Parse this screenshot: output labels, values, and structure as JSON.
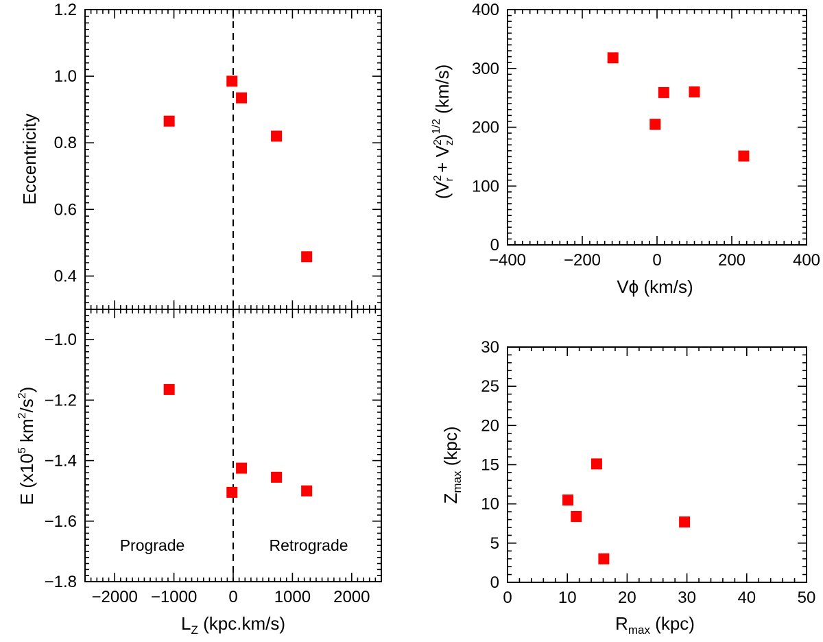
{
  "figure_title": "",
  "chart_data": [
    {
      "id": "ecc",
      "type": "scatter",
      "title": "",
      "xlabel": "",
      "ylabel": "Eccentricity",
      "xlim": [
        -2500,
        2500
      ],
      "ylim": [
        0.3,
        1.2
      ],
      "xticks": [
        -2000,
        -1000,
        0,
        1000,
        2000
      ],
      "yticks": [
        0.4,
        0.6,
        0.8,
        1.0,
        1.2
      ],
      "ytick_labels": [
        "0.4",
        "0.6",
        "0.8",
        "1.0",
        "1.2"
      ],
      "vline_x": 0,
      "marker": "square",
      "color": "#ff0000",
      "points": [
        {
          "x": -1080,
          "y": 0.865
        },
        {
          "x": -20,
          "y": 0.985
        },
        {
          "x": 140,
          "y": 0.935
        },
        {
          "x": 730,
          "y": 0.82
        },
        {
          "x": 1240,
          "y": 0.458
        }
      ]
    },
    {
      "id": "energy",
      "type": "scatter",
      "title": "",
      "xlabel": "L_Z (kpc.km/s)",
      "xlabel_main": "L",
      "xlabel_sub": "Z",
      "xlabel_rest": " (kpc.km/s)",
      "ylabel": "E (x10^5 km^2/s^2)",
      "ylabel_parts": {
        "a": "E (x10",
        "b": "5",
        "c": " km",
        "d": "2",
        "e": "/s",
        "f": "2",
        "g": ")"
      },
      "xlim": [
        -2500,
        2500
      ],
      "ylim": [
        -1.8,
        -0.9
      ],
      "xticks": [
        -2000,
        -1000,
        0,
        1000,
        2000
      ],
      "xtick_labels": [
        "−2000",
        "−1000",
        "0",
        "1000",
        "2000"
      ],
      "yticks": [
        -1.8,
        -1.6,
        -1.4,
        -1.2,
        -1.0
      ],
      "ytick_labels": [
        "−1.8",
        "−1.6",
        "−1.4",
        "−1.2",
        "−1.0"
      ],
      "vline_x": 0,
      "marker": "square",
      "color": "#ff0000",
      "annotations": [
        "Prograde",
        "Retrograde"
      ],
      "points": [
        {
          "x": -1080,
          "y": -1.165
        },
        {
          "x": -20,
          "y": -1.505
        },
        {
          "x": 140,
          "y": -1.425
        },
        {
          "x": 730,
          "y": -1.455
        },
        {
          "x": 1240,
          "y": -1.5
        }
      ]
    },
    {
      "id": "velocity",
      "type": "scatter",
      "title": "",
      "xlabel": "Vϕ (km/s)",
      "ylabel": "(V_r^2 + V_z^2)^1/2 (km/s)",
      "ylabel_parts": {
        "a": "(V",
        "b": "2",
        "c": "r",
        "d": " + V",
        "e": "2",
        "f": "z",
        "g": ")",
        "h": "1/2",
        "i": " (km/s)"
      },
      "xlim": [
        -400,
        400
      ],
      "ylim": [
        0,
        400
      ],
      "xticks": [
        -400,
        -200,
        0,
        200,
        400
      ],
      "xtick_labels": [
        "−400",
        "−200",
        "0",
        "200",
        "400"
      ],
      "yticks": [
        0,
        100,
        200,
        300,
        400
      ],
      "ytick_labels": [
        "0",
        "100",
        "200",
        "300",
        "400"
      ],
      "marker": "square",
      "color": "#ff0000",
      "points": [
        {
          "x": -118,
          "y": 318
        },
        {
          "x": -5,
          "y": 205
        },
        {
          "x": 18,
          "y": 259
        },
        {
          "x": 100,
          "y": 260
        },
        {
          "x": 232,
          "y": 151
        }
      ]
    },
    {
      "id": "orbit",
      "type": "scatter",
      "title": "",
      "xlabel": "R_max (kpc)",
      "xlabel_main": "R",
      "xlabel_sub": "max",
      "xlabel_rest": " (kpc)",
      "ylabel": "Z_max (kpc)",
      "ylabel_main": "Z",
      "ylabel_sub": "max",
      "ylabel_rest": " (kpc)",
      "xlim": [
        0,
        50
      ],
      "ylim": [
        0,
        30
      ],
      "xticks": [
        0,
        10,
        20,
        30,
        40,
        50
      ],
      "xtick_labels": [
        "0",
        "10",
        "20",
        "30",
        "40",
        "50"
      ],
      "yticks": [
        0,
        5,
        10,
        15,
        20,
        25,
        30
      ],
      "ytick_labels": [
        "0",
        "5",
        "10",
        "15",
        "20",
        "25",
        "30"
      ],
      "marker": "square",
      "color": "#ff0000",
      "points": [
        {
          "x": 10.1,
          "y": 10.5
        },
        {
          "x": 11.5,
          "y": 8.4
        },
        {
          "x": 14.9,
          "y": 15.1
        },
        {
          "x": 16.1,
          "y": 3.0
        },
        {
          "x": 29.6,
          "y": 7.7
        }
      ]
    }
  ]
}
